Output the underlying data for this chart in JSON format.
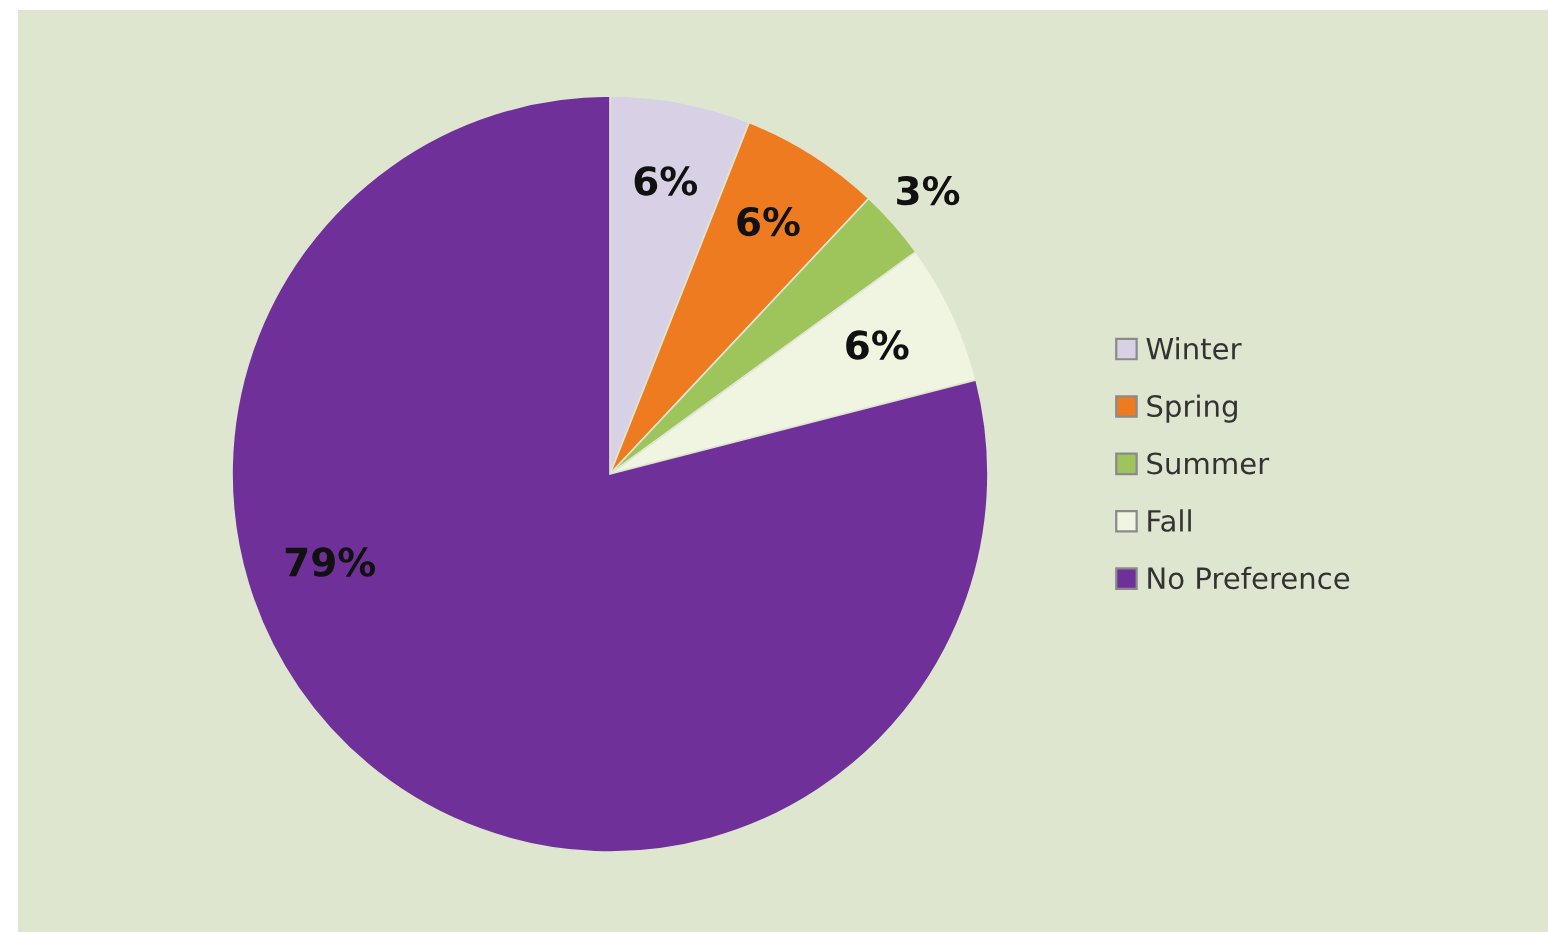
{
  "chart_data": {
    "type": "pie",
    "categories": [
      "Winter",
      "Spring",
      "Summer",
      "Fall",
      "No Preference"
    ],
    "values": [
      6,
      6,
      3,
      6,
      79
    ],
    "colors": [
      "#d8d0e4",
      "#ee7b1f",
      "#9ec45c",
      "#f0f5e2",
      "#70309a"
    ],
    "value_labels": [
      "6%",
      "6%",
      "3%",
      "6%",
      "79%"
    ],
    "legend": "right"
  }
}
